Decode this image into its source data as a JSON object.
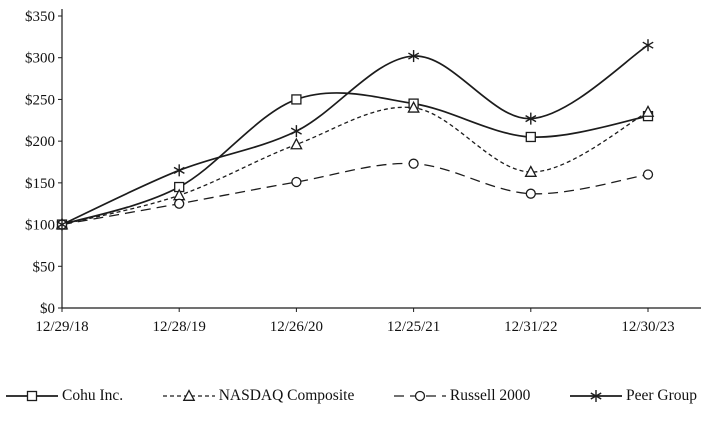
{
  "chart_data": {
    "type": "line",
    "title": "",
    "categories": [
      "12/29/18",
      "12/28/19",
      "12/26/20",
      "12/25/21",
      "12/31/22",
      "12/30/23"
    ],
    "x_ticks": [
      "12/29/18",
      "12/28/19",
      "12/26/20",
      "12/25/21",
      "12/31/22",
      "12/30/23"
    ],
    "y_ticks": [
      "$0",
      "$50",
      "$100",
      "$150",
      "$200",
      "$250",
      "$300",
      "$350"
    ],
    "ylim": [
      0,
      350
    ],
    "ytick_step": 50,
    "grid": false,
    "legend_position": "bottom",
    "line_color": "#1c1c1c",
    "background": "#ffffff",
    "series": [
      {
        "name": "Cohu Inc.",
        "values": [
          100,
          145,
          250,
          245,
          205,
          230
        ],
        "marker": "square",
        "line_style": "solid"
      },
      {
        "name": "NASDAQ Composite",
        "values": [
          100,
          135,
          196,
          240,
          163,
          235
        ],
        "marker": "triangle",
        "line_style": "dotted"
      },
      {
        "name": "Russell 2000",
        "values": [
          100,
          125,
          151,
          173,
          137,
          160
        ],
        "marker": "circle",
        "line_style": "dashed"
      },
      {
        "name": "Peer Group",
        "values": [
          100,
          165,
          212,
          302,
          227,
          315
        ],
        "marker": "asterisk",
        "line_style": "solid"
      }
    ]
  }
}
